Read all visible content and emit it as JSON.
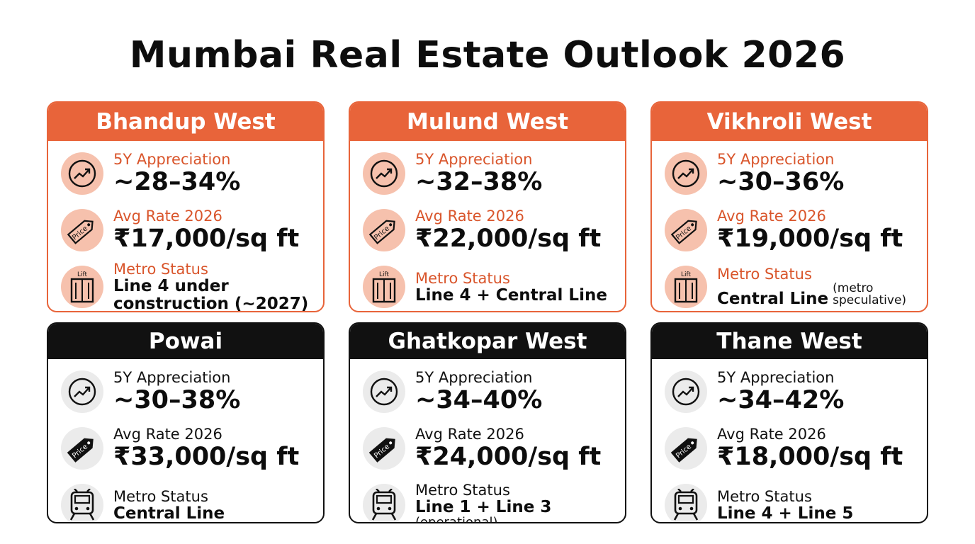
{
  "title": "Mumbai Real Estate Outlook 2026",
  "labels": {
    "appreciation": "5Y Appreciation",
    "rate": "Avg Rate 2026",
    "metro": "Metro Status"
  },
  "icon_text": {
    "price": "Price",
    "lift": "Lift"
  },
  "colors": {
    "accent": "#e8643a",
    "accent_light": "#f6c1ad",
    "dark": "#111111"
  },
  "cards": [
    {
      "name": "Bhandup West",
      "appreciation": "~28–34%",
      "rate": "₹17,000/sq ft",
      "metro": "Line 4 under",
      "metro_line2": "construction (~2027)",
      "theme": "orange",
      "metro_icon": "lift-icon"
    },
    {
      "name": "Mulund West",
      "appreciation": "~32–38%",
      "rate": "₹22,000/sq ft",
      "metro": "Line 4 + Central Line",
      "theme": "orange",
      "metro_icon": "lift-icon"
    },
    {
      "name": "Vikhroli West",
      "appreciation": "~30–36%",
      "rate": "₹19,000/sq ft",
      "metro": "Central Line",
      "metro_note": "(metro speculative)",
      "theme": "orange",
      "metro_icon": "lift-icon"
    },
    {
      "name": "Powai",
      "appreciation": "~30–38%",
      "rate": "₹33,000/sq ft",
      "metro": "Central Line",
      "theme": "dark",
      "metro_icon": "train-icon"
    },
    {
      "name": "Ghatkopar West",
      "appreciation": "~34–40%",
      "rate": "₹24,000/sq ft",
      "metro": "Line 1 + Line 3",
      "metro_note": "(operational)",
      "theme": "dark",
      "metro_icon": "train-icon"
    },
    {
      "name": "Thane West",
      "appreciation": "~34–42%",
      "rate": "₹18,000/sq ft",
      "metro": "Line 4 + Line 5",
      "theme": "dark",
      "metro_icon": "train-icon"
    }
  ]
}
